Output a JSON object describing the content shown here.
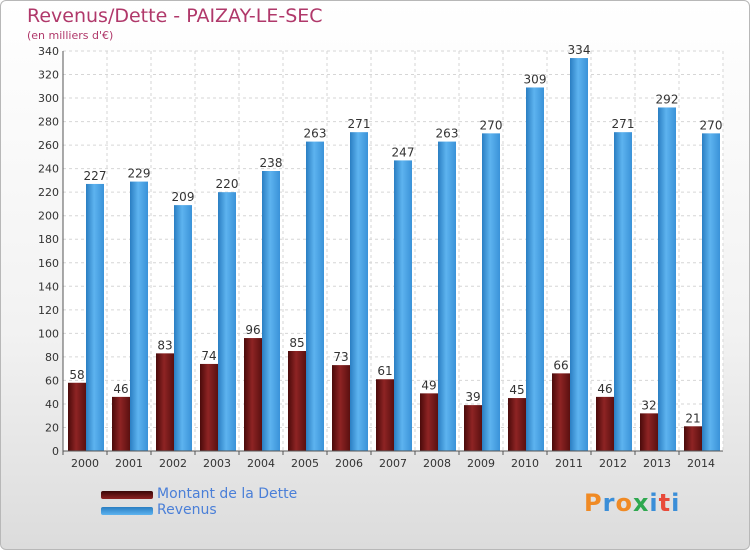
{
  "header": {
    "title": "Revenus/Dette - PAIZAY-LE-SEC",
    "subtitle": "(en milliers d'€)"
  },
  "legend": {
    "items": [
      {
        "label": "Montant de la Dette",
        "color": "#7a1a1a"
      },
      {
        "label": "Revenus",
        "color": "#3f9be0"
      }
    ]
  },
  "logo": {
    "letters": [
      "P",
      "r",
      "o",
      "x",
      "i",
      "t",
      "i"
    ],
    "colors": [
      "#f08a24",
      "#3a8ed8",
      "#f08a24",
      "#2fa84f",
      "#3a8ed8",
      "#e84a3a",
      "#3a8ed8"
    ]
  },
  "chart_data": {
    "type": "bar",
    "title": "Revenus/Dette - PAIZAY-LE-SEC",
    "subtitle": "(en milliers d'€)",
    "categories": [
      "2000",
      "2001",
      "2002",
      "2003",
      "2004",
      "2005",
      "2006",
      "2007",
      "2008",
      "2009",
      "2010",
      "2011",
      "2012",
      "2013",
      "2014"
    ],
    "series": [
      {
        "name": "Montant de la Dette",
        "color": "#7a1a1a",
        "values": [
          58,
          46,
          83,
          74,
          96,
          85,
          73,
          61,
          49,
          39,
          45,
          66,
          46,
          32,
          21
        ]
      },
      {
        "name": "Revenus",
        "color": "#3f9be0",
        "values": [
          227,
          229,
          209,
          220,
          238,
          263,
          271,
          247,
          263,
          270,
          309,
          334,
          271,
          292,
          270
        ]
      }
    ],
    "ylim": [
      0,
      340
    ],
    "ytick_step": 20,
    "grid": true,
    "legend_position": "bottom-left"
  }
}
